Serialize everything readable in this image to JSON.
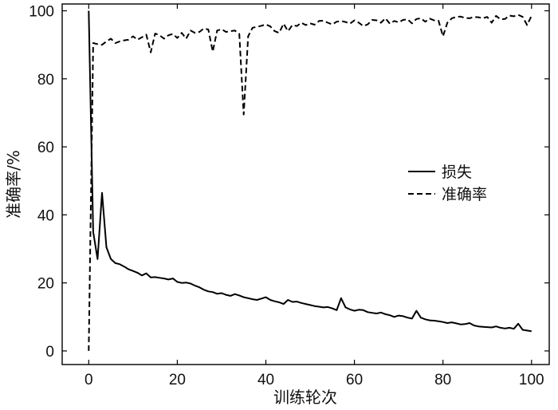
{
  "chart_data": {
    "type": "line",
    "title": "",
    "xlabel": "训练轮次",
    "ylabel": "准确率/%",
    "xlim": [
      -6,
      104
    ],
    "ylim": [
      -4,
      102
    ],
    "xticks": [
      0,
      20,
      40,
      60,
      80,
      100
    ],
    "yticks": [
      0,
      20,
      40,
      60,
      80,
      100
    ],
    "grid": false,
    "legend_position": "right",
    "series": [
      {
        "name": "损失",
        "style": "solid",
        "color": "#000000",
        "x": [
          0,
          1,
          2,
          3,
          4,
          5,
          6,
          7,
          8,
          9,
          10,
          11,
          12,
          13,
          14,
          15,
          16,
          17,
          18,
          19,
          20,
          21,
          22,
          23,
          24,
          25,
          26,
          27,
          28,
          29,
          30,
          31,
          32,
          33,
          34,
          35,
          36,
          37,
          38,
          39,
          40,
          41,
          42,
          43,
          44,
          45,
          46,
          47,
          48,
          49,
          50,
          51,
          52,
          53,
          54,
          55,
          56,
          57,
          58,
          59,
          60,
          61,
          62,
          63,
          64,
          65,
          66,
          67,
          68,
          69,
          70,
          71,
          72,
          73,
          74,
          75,
          76,
          77,
          78,
          79,
          80,
          81,
          82,
          83,
          84,
          85,
          86,
          87,
          88,
          89,
          90,
          91,
          92,
          93,
          94,
          95,
          96,
          97,
          98,
          99,
          100
        ],
        "values": [
          100,
          35,
          27,
          46.5,
          30.5,
          27,
          25.8,
          25.5,
          24.8,
          24,
          23.5,
          23,
          22.2,
          22.8,
          21.6,
          21.7,
          21.5,
          21.3,
          21,
          21.3,
          20.3,
          20,
          20.1,
          19.8,
          19.2,
          18.7,
          18,
          17.5,
          17.3,
          16.8,
          17,
          16.5,
          16.2,
          16.7,
          16.3,
          15.8,
          15.5,
          15.2,
          15,
          15.4,
          15.8,
          15,
          14.6,
          14.3,
          13.8,
          15,
          14.4,
          14.5,
          14.1,
          13.8,
          13.5,
          13.2,
          13,
          12.8,
          12.9,
          12.5,
          12,
          15.5,
          12.8,
          12.2,
          11.8,
          12.1,
          12,
          11.4,
          11.2,
          11,
          11.3,
          10.8,
          10.5,
          10,
          10.4,
          10.2,
          9.8,
          9.5,
          11.8,
          9.8,
          9.3,
          9,
          8.9,
          8.7,
          8.5,
          8.2,
          8.4,
          8.1,
          7.8,
          7.9,
          8.2,
          7.5,
          7.2,
          7.1,
          7,
          6.9,
          7.2,
          6.8,
          6.6,
          6.8,
          6.5,
          8,
          6.2,
          6,
          5.8
        ]
      },
      {
        "name": "准确率",
        "style": "dashed",
        "color": "#000000",
        "x": [
          0,
          1,
          2,
          3,
          4,
          5,
          6,
          7,
          8,
          9,
          10,
          11,
          12,
          13,
          14,
          15,
          16,
          17,
          18,
          19,
          20,
          21,
          22,
          23,
          24,
          25,
          26,
          27,
          28,
          29,
          30,
          31,
          32,
          33,
          34,
          35,
          36,
          37,
          38,
          39,
          40,
          41,
          42,
          43,
          44,
          45,
          46,
          47,
          48,
          49,
          50,
          51,
          52,
          53,
          54,
          55,
          56,
          57,
          58,
          59,
          60,
          61,
          62,
          63,
          64,
          65,
          66,
          67,
          68,
          69,
          70,
          71,
          72,
          73,
          74,
          75,
          76,
          77,
          78,
          79,
          80,
          81,
          82,
          83,
          84,
          85,
          86,
          87,
          88,
          89,
          90,
          91,
          92,
          93,
          94,
          95,
          96,
          97,
          98,
          99,
          100
        ],
        "values": [
          0,
          90.5,
          90.2,
          90,
          91,
          91.8,
          90.5,
          91,
          91.3,
          91.5,
          92.5,
          91.5,
          92.2,
          93,
          87.8,
          93.3,
          92.8,
          91.8,
          92.8,
          93.2,
          92,
          93.5,
          91.8,
          94.2,
          93.5,
          93.8,
          94.8,
          94.5,
          88,
          94.2,
          94.6,
          93.8,
          94,
          94.2,
          93.2,
          69.5,
          92.5,
          95,
          95.3,
          95.6,
          96,
          95.4,
          94,
          93.5,
          96.2,
          94,
          95.8,
          95.5,
          96.5,
          95.8,
          96.3,
          95.9,
          97,
          97.1,
          96.5,
          96,
          96.8,
          97,
          96.7,
          96.2,
          97.2,
          96.5,
          95.5,
          96,
          97.3,
          97.2,
          96.5,
          97.8,
          96.2,
          97,
          96.6,
          97.3,
          97.5,
          96.3,
          97.6,
          97.8,
          96.8,
          97.7,
          97.2,
          97.1,
          92.5,
          96.5,
          97.8,
          98.2,
          98.3,
          97.9,
          97.8,
          98.2,
          98.1,
          97.8,
          98.2,
          96.5,
          98.5,
          97.5,
          97.6,
          98.6,
          98.4,
          98.8,
          98.2,
          95.8,
          98.5
        ]
      }
    ]
  }
}
